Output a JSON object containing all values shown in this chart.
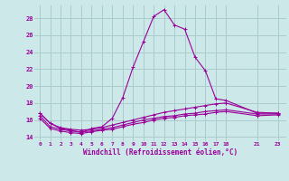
{
  "background_color": "#cce8e8",
  "grid_color": "#aacccc",
  "line_color": "#990099",
  "xlabel": "Windchill (Refroidissement éolien,°C)",
  "xlim": [
    -0.5,
    23.8
  ],
  "ylim": [
    13.5,
    29.5
  ],
  "yticks": [
    14,
    16,
    18,
    20,
    22,
    24,
    26,
    28
  ],
  "xticks": [
    0,
    1,
    2,
    3,
    4,
    5,
    6,
    7,
    8,
    9,
    10,
    11,
    12,
    13,
    14,
    15,
    16,
    17,
    18,
    21,
    23
  ],
  "series": [
    {
      "x": [
        0,
        1,
        2,
        3,
        4,
        5,
        6,
        7,
        8,
        9,
        10,
        11,
        12,
        13,
        14,
        15,
        16,
        17,
        18,
        21,
        23
      ],
      "y": [
        16.8,
        15.6,
        15.0,
        14.8,
        14.5,
        15.0,
        15.2,
        16.2,
        18.6,
        22.2,
        25.2,
        28.2,
        29.0,
        27.2,
        26.7,
        23.4,
        21.8,
        18.5,
        18.3,
        16.8,
        16.8
      ]
    },
    {
      "x": [
        0,
        1,
        2,
        3,
        4,
        5,
        6,
        7,
        8,
        9,
        10,
        11,
        12,
        13,
        14,
        15,
        16,
        17,
        18,
        21,
        23
      ],
      "y": [
        16.8,
        15.6,
        15.1,
        14.9,
        14.8,
        14.9,
        15.1,
        15.4,
        15.7,
        16.0,
        16.3,
        16.6,
        16.9,
        17.1,
        17.3,
        17.5,
        17.7,
        17.9,
        18.0,
        16.9,
        16.8
      ]
    },
    {
      "x": [
        0,
        1,
        2,
        3,
        4,
        5,
        6,
        7,
        8,
        9,
        10,
        11,
        12,
        13,
        14,
        15,
        16,
        17,
        18,
        21,
        23
      ],
      "y": [
        16.5,
        15.2,
        14.9,
        14.7,
        14.6,
        14.7,
        14.9,
        15.1,
        15.4,
        15.7,
        16.0,
        16.2,
        16.4,
        16.5,
        16.7,
        16.8,
        17.0,
        17.1,
        17.2,
        16.7,
        16.7
      ]
    },
    {
      "x": [
        0,
        1,
        2,
        3,
        4,
        5,
        6,
        7,
        8,
        9,
        10,
        11,
        12,
        13,
        14,
        15,
        16,
        17,
        18,
        21,
        23
      ],
      "y": [
        16.2,
        15.0,
        14.7,
        14.5,
        14.4,
        14.6,
        14.8,
        14.9,
        15.2,
        15.5,
        15.7,
        16.0,
        16.2,
        16.3,
        16.5,
        16.6,
        16.7,
        16.9,
        17.0,
        16.5,
        16.6
      ]
    }
  ]
}
